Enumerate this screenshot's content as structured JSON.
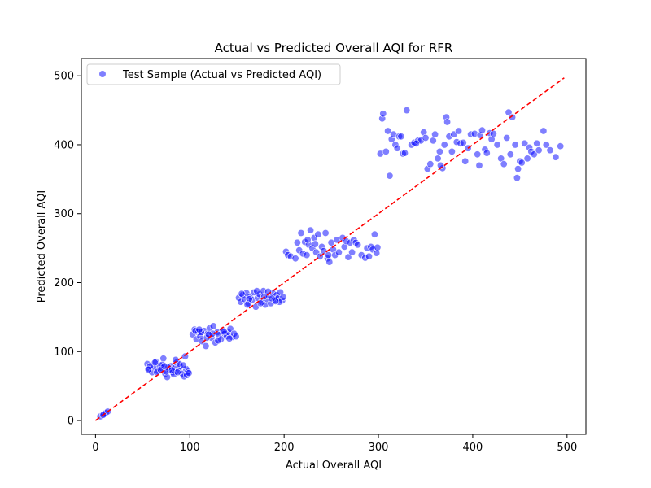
{
  "chart_data": {
    "type": "scatter",
    "title": "Actual vs Predicted Overall AQI for RFR",
    "xlabel": "Actual Overall AQI",
    "ylabel": "Predicted Overall AQI",
    "xlim": [
      -15,
      520
    ],
    "ylim": [
      -20,
      525
    ],
    "xticks": [
      0,
      100,
      200,
      300,
      400,
      500
    ],
    "yticks": [
      0,
      100,
      200,
      300,
      400,
      500
    ],
    "grid": false,
    "legend": {
      "position": "top-left",
      "entries": [
        "Test Sample (Actual vs Predicted AQI)"
      ]
    },
    "colors": {
      "points": "#0000ff",
      "reference_line": "#ff0000"
    },
    "reference_line": {
      "x": [
        0,
        497
      ],
      "y": [
        0,
        497
      ],
      "style": "dashed"
    },
    "series": [
      {
        "name": "Test Sample (Actual vs Predicted AQI)",
        "points": [
          [
            5,
            6
          ],
          [
            9,
            9
          ],
          [
            11,
            11
          ],
          [
            13,
            13
          ],
          [
            8,
            8
          ],
          [
            55,
            82
          ],
          [
            57,
            75
          ],
          [
            60,
            70
          ],
          [
            62,
            78
          ],
          [
            64,
            85
          ],
          [
            66,
            72
          ],
          [
            68,
            80
          ],
          [
            70,
            76
          ],
          [
            72,
            90
          ],
          [
            74,
            68
          ],
          [
            76,
            63
          ],
          [
            78,
            74
          ],
          [
            80,
            79
          ],
          [
            82,
            70
          ],
          [
            84,
            76
          ],
          [
            86,
            84
          ],
          [
            88,
            72
          ],
          [
            90,
            78
          ],
          [
            92,
            68
          ],
          [
            94,
            64
          ],
          [
            96,
            75
          ],
          [
            98,
            71
          ],
          [
            58,
            79
          ],
          [
            65,
            70
          ],
          [
            71,
            81
          ],
          [
            77,
            77
          ],
          [
            83,
            67
          ],
          [
            89,
            82
          ],
          [
            95,
            93
          ],
          [
            56,
            74
          ],
          [
            63,
            84
          ],
          [
            69,
            74
          ],
          [
            75,
            71
          ],
          [
            81,
            73
          ],
          [
            87,
            70
          ],
          [
            93,
            80
          ],
          [
            97,
            66
          ],
          [
            99,
            69
          ],
          [
            85,
            88
          ],
          [
            73,
            79
          ],
          [
            103,
            125
          ],
          [
            105,
            132
          ],
          [
            107,
            118
          ],
          [
            109,
            128
          ],
          [
            111,
            122
          ],
          [
            113,
            115
          ],
          [
            115,
            130
          ],
          [
            117,
            108
          ],
          [
            119,
            126
          ],
          [
            121,
            134
          ],
          [
            123,
            120
          ],
          [
            125,
            137
          ],
          [
            127,
            113
          ],
          [
            129,
            128
          ],
          [
            131,
            124
          ],
          [
            133,
            118
          ],
          [
            135,
            131
          ],
          [
            137,
            126
          ],
          [
            139,
            122
          ],
          [
            141,
            128
          ],
          [
            143,
            133
          ],
          [
            145,
            121
          ],
          [
            147,
            126
          ],
          [
            149,
            122
          ],
          [
            106,
            130
          ],
          [
            112,
            128
          ],
          [
            118,
            120
          ],
          [
            124,
            126
          ],
          [
            130,
            116
          ],
          [
            136,
            129
          ],
          [
            142,
            119
          ],
          [
            110,
            132
          ],
          [
            120,
            125
          ],
          [
            152,
            178
          ],
          [
            154,
            172
          ],
          [
            156,
            182
          ],
          [
            158,
            176
          ],
          [
            160,
            185
          ],
          [
            162,
            170
          ],
          [
            164,
            180
          ],
          [
            166,
            175
          ],
          [
            168,
            186
          ],
          [
            170,
            165
          ],
          [
            172,
            178
          ],
          [
            174,
            183
          ],
          [
            176,
            172
          ],
          [
            178,
            188
          ],
          [
            180,
            168
          ],
          [
            182,
            176
          ],
          [
            184,
            181
          ],
          [
            186,
            170
          ],
          [
            188,
            185
          ],
          [
            190,
            175
          ],
          [
            192,
            182
          ],
          [
            194,
            178
          ],
          [
            196,
            186
          ],
          [
            198,
            174
          ],
          [
            199,
            179
          ],
          [
            155,
            184
          ],
          [
            163,
            176
          ],
          [
            171,
            188
          ],
          [
            179,
            180
          ],
          [
            187,
            177
          ],
          [
            195,
            172
          ],
          [
            161,
            168
          ],
          [
            175,
            170
          ],
          [
            183,
            187
          ],
          [
            191,
            173
          ],
          [
            202,
            245
          ],
          [
            204,
            240
          ],
          [
            207,
            238
          ],
          [
            212,
            235
          ],
          [
            214,
            258
          ],
          [
            216,
            247
          ],
          [
            218,
            272
          ],
          [
            220,
            242
          ],
          [
            222,
            259
          ],
          [
            224,
            240
          ],
          [
            226,
            255
          ],
          [
            228,
            276
          ],
          [
            230,
            250
          ],
          [
            232,
            265
          ],
          [
            234,
            244
          ],
          [
            236,
            270
          ],
          [
            238,
            238
          ],
          [
            240,
            252
          ],
          [
            242,
            246
          ],
          [
            244,
            272
          ],
          [
            246,
            235
          ],
          [
            248,
            230
          ],
          [
            250,
            258
          ],
          [
            252,
            248
          ],
          [
            254,
            240
          ],
          [
            256,
            262
          ],
          [
            258,
            244
          ],
          [
            262,
            265
          ],
          [
            264,
            252
          ],
          [
            266,
            260
          ],
          [
            268,
            237
          ],
          [
            270,
            258
          ],
          [
            272,
            244
          ],
          [
            274,
            262
          ],
          [
            276,
            258
          ],
          [
            278,
            255
          ],
          [
            282,
            240
          ],
          [
            286,
            236
          ],
          [
            288,
            250
          ],
          [
            290,
            238
          ],
          [
            292,
            252
          ],
          [
            294,
            248
          ],
          [
            296,
            270
          ],
          [
            298,
            243
          ],
          [
            299,
            251
          ],
          [
            225,
            262
          ],
          [
            233,
            256
          ],
          [
            247,
            240
          ],
          [
            302,
            387
          ],
          [
            304,
            438
          ],
          [
            305,
            445
          ],
          [
            308,
            390
          ],
          [
            310,
            420
          ],
          [
            312,
            355
          ],
          [
            314,
            408
          ],
          [
            316,
            415
          ],
          [
            318,
            400
          ],
          [
            320,
            395
          ],
          [
            322,
            412
          ],
          [
            324,
            412
          ],
          [
            326,
            387
          ],
          [
            328,
            388
          ],
          [
            330,
            450
          ],
          [
            335,
            400
          ],
          [
            338,
            403
          ],
          [
            342,
            406
          ],
          [
            345,
            406
          ],
          [
            348,
            418
          ],
          [
            350,
            410
          ],
          [
            352,
            365
          ],
          [
            355,
            372
          ],
          [
            358,
            406
          ],
          [
            360,
            415
          ],
          [
            363,
            380
          ],
          [
            365,
            390
          ],
          [
            368,
            366
          ],
          [
            370,
            400
          ],
          [
            372,
            440
          ],
          [
            373,
            433
          ],
          [
            375,
            412
          ],
          [
            378,
            390
          ],
          [
            380,
            415
          ],
          [
            383,
            404
          ],
          [
            385,
            420
          ],
          [
            387,
            402
          ],
          [
            390,
            403
          ],
          [
            392,
            376
          ],
          [
            395,
            395
          ],
          [
            398,
            415
          ],
          [
            402,
            416
          ],
          [
            405,
            386
          ],
          [
            407,
            370
          ],
          [
            408,
            414
          ],
          [
            410,
            421
          ],
          [
            413,
            393
          ],
          [
            415,
            388
          ],
          [
            418,
            417
          ],
          [
            420,
            408
          ],
          [
            422,
            416
          ],
          [
            426,
            400
          ],
          [
            430,
            380
          ],
          [
            433,
            372
          ],
          [
            436,
            410
          ],
          [
            438,
            447
          ],
          [
            440,
            386
          ],
          [
            442,
            440
          ],
          [
            445,
            400
          ],
          [
            447,
            352
          ],
          [
            448,
            365
          ],
          [
            450,
            376
          ],
          [
            452,
            374
          ],
          [
            455,
            402
          ],
          [
            458,
            380
          ],
          [
            460,
            396
          ],
          [
            462,
            390
          ],
          [
            465,
            386
          ],
          [
            468,
            402
          ],
          [
            470,
            392
          ],
          [
            475,
            420
          ],
          [
            478,
            400
          ],
          [
            482,
            392
          ],
          [
            488,
            382
          ],
          [
            493,
            398
          ],
          [
            366,
            370
          ],
          [
            340,
            402
          ]
        ]
      }
    ]
  }
}
